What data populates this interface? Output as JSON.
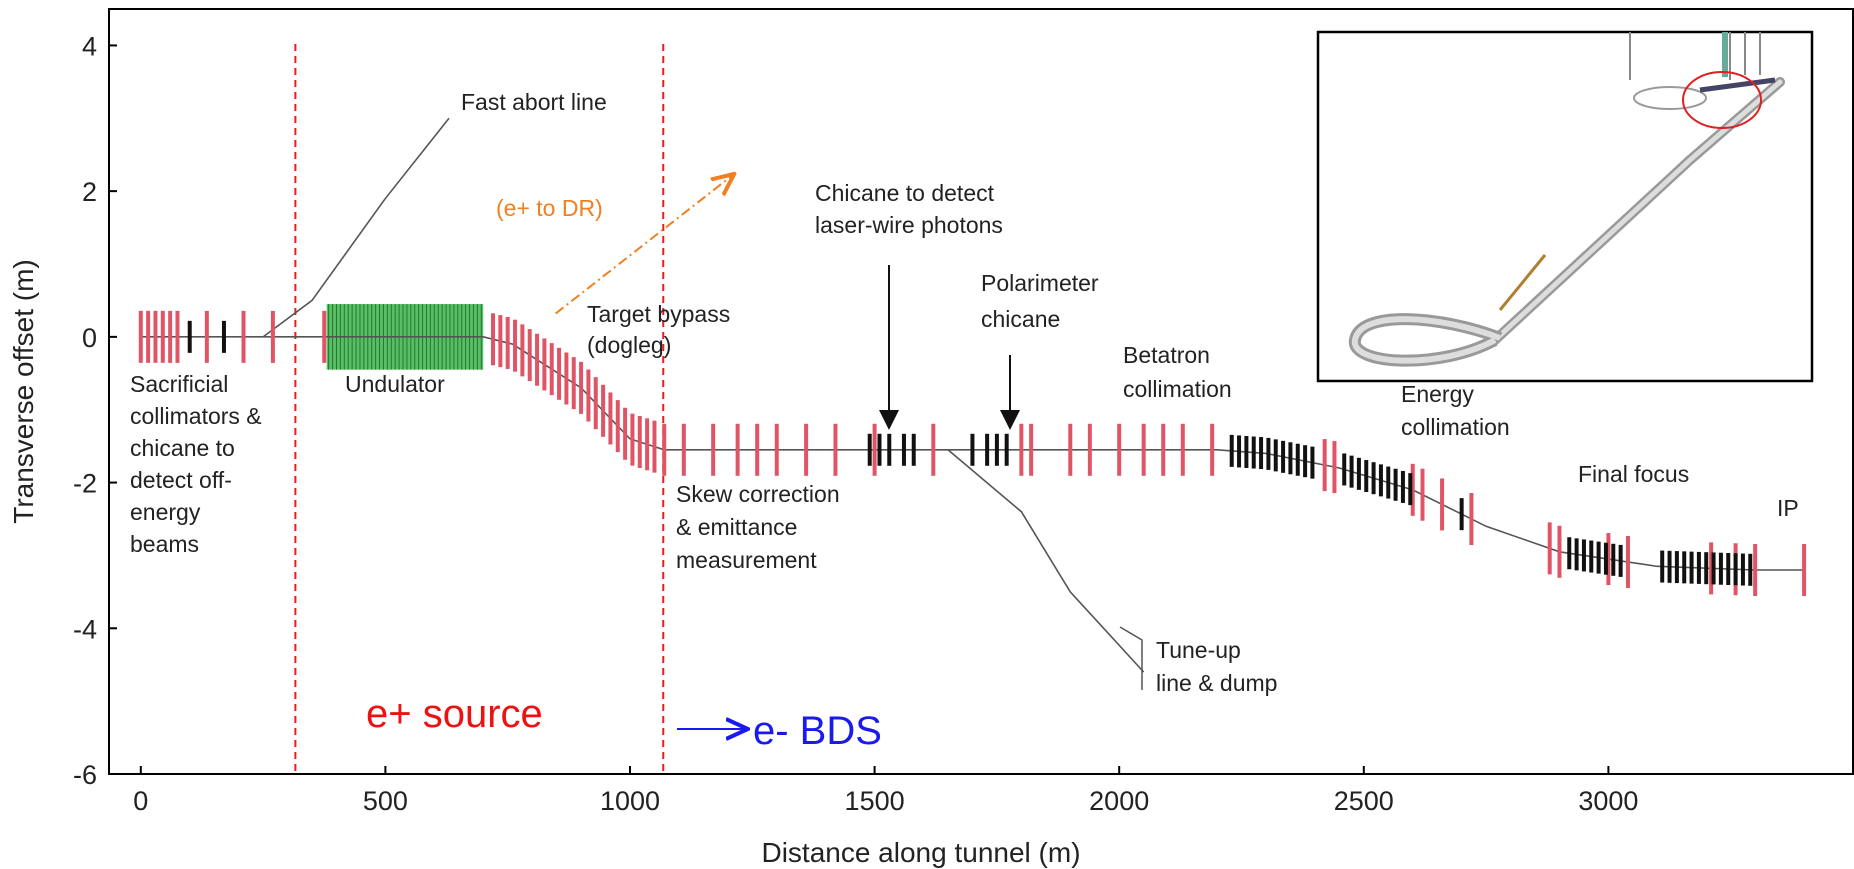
{
  "chart_data": {
    "type": "line",
    "x_label": "Distance along tunnel (m)",
    "y_label": "Transverse offset (m)",
    "xlim": [
      -65,
      3500
    ],
    "ylim": [
      -6,
      4.5
    ],
    "xticks": [
      0,
      500,
      1000,
      1500,
      2000,
      2500,
      3000
    ],
    "yticks": [
      -6,
      -4,
      -2,
      0,
      2,
      4
    ],
    "series": [
      {
        "color": "#555555",
        "x": [
          0,
          380,
          700,
          760,
          900,
          1000,
          1070,
          1500,
          2200,
          2300,
          2450,
          2600,
          2750,
          2900,
          3100,
          3300,
          3400
        ],
        "y": [
          0,
          0,
          0,
          -0.1,
          -0.7,
          -1.4,
          -1.55,
          -1.55,
          -1.55,
          -1.6,
          -1.8,
          -2.1,
          -2.6,
          -2.95,
          -3.15,
          -3.2,
          -3.2
        ]
      },
      {
        "color": "#555555",
        "x": [
          250,
          350,
          500,
          630
        ],
        "y": [
          0,
          0.5,
          1.9,
          3.0
        ]
      },
      {
        "color": "#555555",
        "x": [
          1650,
          1800,
          1900,
          2050
        ],
        "y": [
          -1.55,
          -2.4,
          -3.5,
          -4.6
        ]
      },
      {
        "color": "#f08020",
        "dash": true,
        "x": [
          848,
          1210
        ],
        "y": [
          0.32,
          2.22
        ]
      }
    ],
    "regions": [
      {
        "color": "#3cb44b",
        "x": [
          380,
          700
        ],
        "y": [
          -0.45,
          0.45
        ]
      }
    ],
    "magnets": [
      {
        "color": "#e05565",
        "x": [
          0,
          15,
          30,
          45,
          60,
          75,
          135,
          210,
          270,
          375,
          720,
          735,
          750,
          765,
          780,
          795,
          810,
          825,
          840,
          855,
          870,
          885,
          900,
          915,
          930,
          945,
          960,
          975,
          990,
          1005,
          1020,
          1035,
          1050,
          1070,
          1110,
          1170,
          1220,
          1260,
          1300,
          1360,
          1420,
          1500,
          1620,
          1800,
          1820,
          1900,
          1940,
          2000,
          2050,
          2090,
          2130,
          2190,
          2420,
          2440,
          2600,
          2620,
          2660,
          2720,
          2880,
          2900,
          3000,
          3040,
          3210,
          3260,
          3300,
          3400
        ]
      },
      {
        "color": "#111111",
        "x": [
          100,
          170,
          1490,
          1510,
          1530,
          1560,
          1580,
          1700,
          1730,
          1750,
          1770,
          2230,
          2245,
          2260,
          2275,
          2290,
          2305,
          2320,
          2335,
          2350,
          2365,
          2380,
          2395,
          2460,
          2475,
          2490,
          2505,
          2520,
          2535,
          2550,
          2565,
          2580,
          2595,
          2700,
          2920,
          2935,
          2950,
          2965,
          2980,
          2995,
          3010,
          3025,
          3110,
          3125,
          3140,
          3155,
          3170,
          3185,
          3200,
          3215,
          3230,
          3245,
          3260,
          3275,
          3290
        ]
      }
    ],
    "vlines": [
      {
        "x": 316,
        "color": "#e02020"
      },
      {
        "x": 1068,
        "color": "#e02020"
      }
    ],
    "annotations": [
      {
        "lines": [
          "Fast abort line"
        ]
      },
      {
        "lines": [
          "(e+ to DR)"
        ],
        "color": "#f08020"
      },
      {
        "lines": [
          "Chicane to detect",
          "laser-wire photons"
        ]
      },
      {
        "lines": [
          "Polarimeter",
          "chicane"
        ]
      },
      {
        "lines": [
          "Target bypass",
          "(dogleg)"
        ]
      },
      {
        "lines": [
          "Betatron",
          "collimation"
        ]
      },
      {
        "lines": [
          "Energy",
          "collimation"
        ]
      },
      {
        "lines": [
          "Final focus"
        ]
      },
      {
        "lines": [
          "IP"
        ]
      },
      {
        "lines": [
          "Sacrificial",
          "collimators &",
          "chicane to",
          "detect off-",
          "energy",
          "beams"
        ]
      },
      {
        "lines": [
          "Undulator"
        ]
      },
      {
        "lines": [
          "Skew correction",
          "& emittance",
          "measurement"
        ]
      },
      {
        "lines": [
          "Tune-up",
          "line & dump"
        ]
      },
      {
        "lines": [
          "e+ source"
        ],
        "color": "#ee1111"
      },
      {
        "lines": [
          "e- BDS"
        ],
        "color": "#1a1aee"
      }
    ]
  }
}
